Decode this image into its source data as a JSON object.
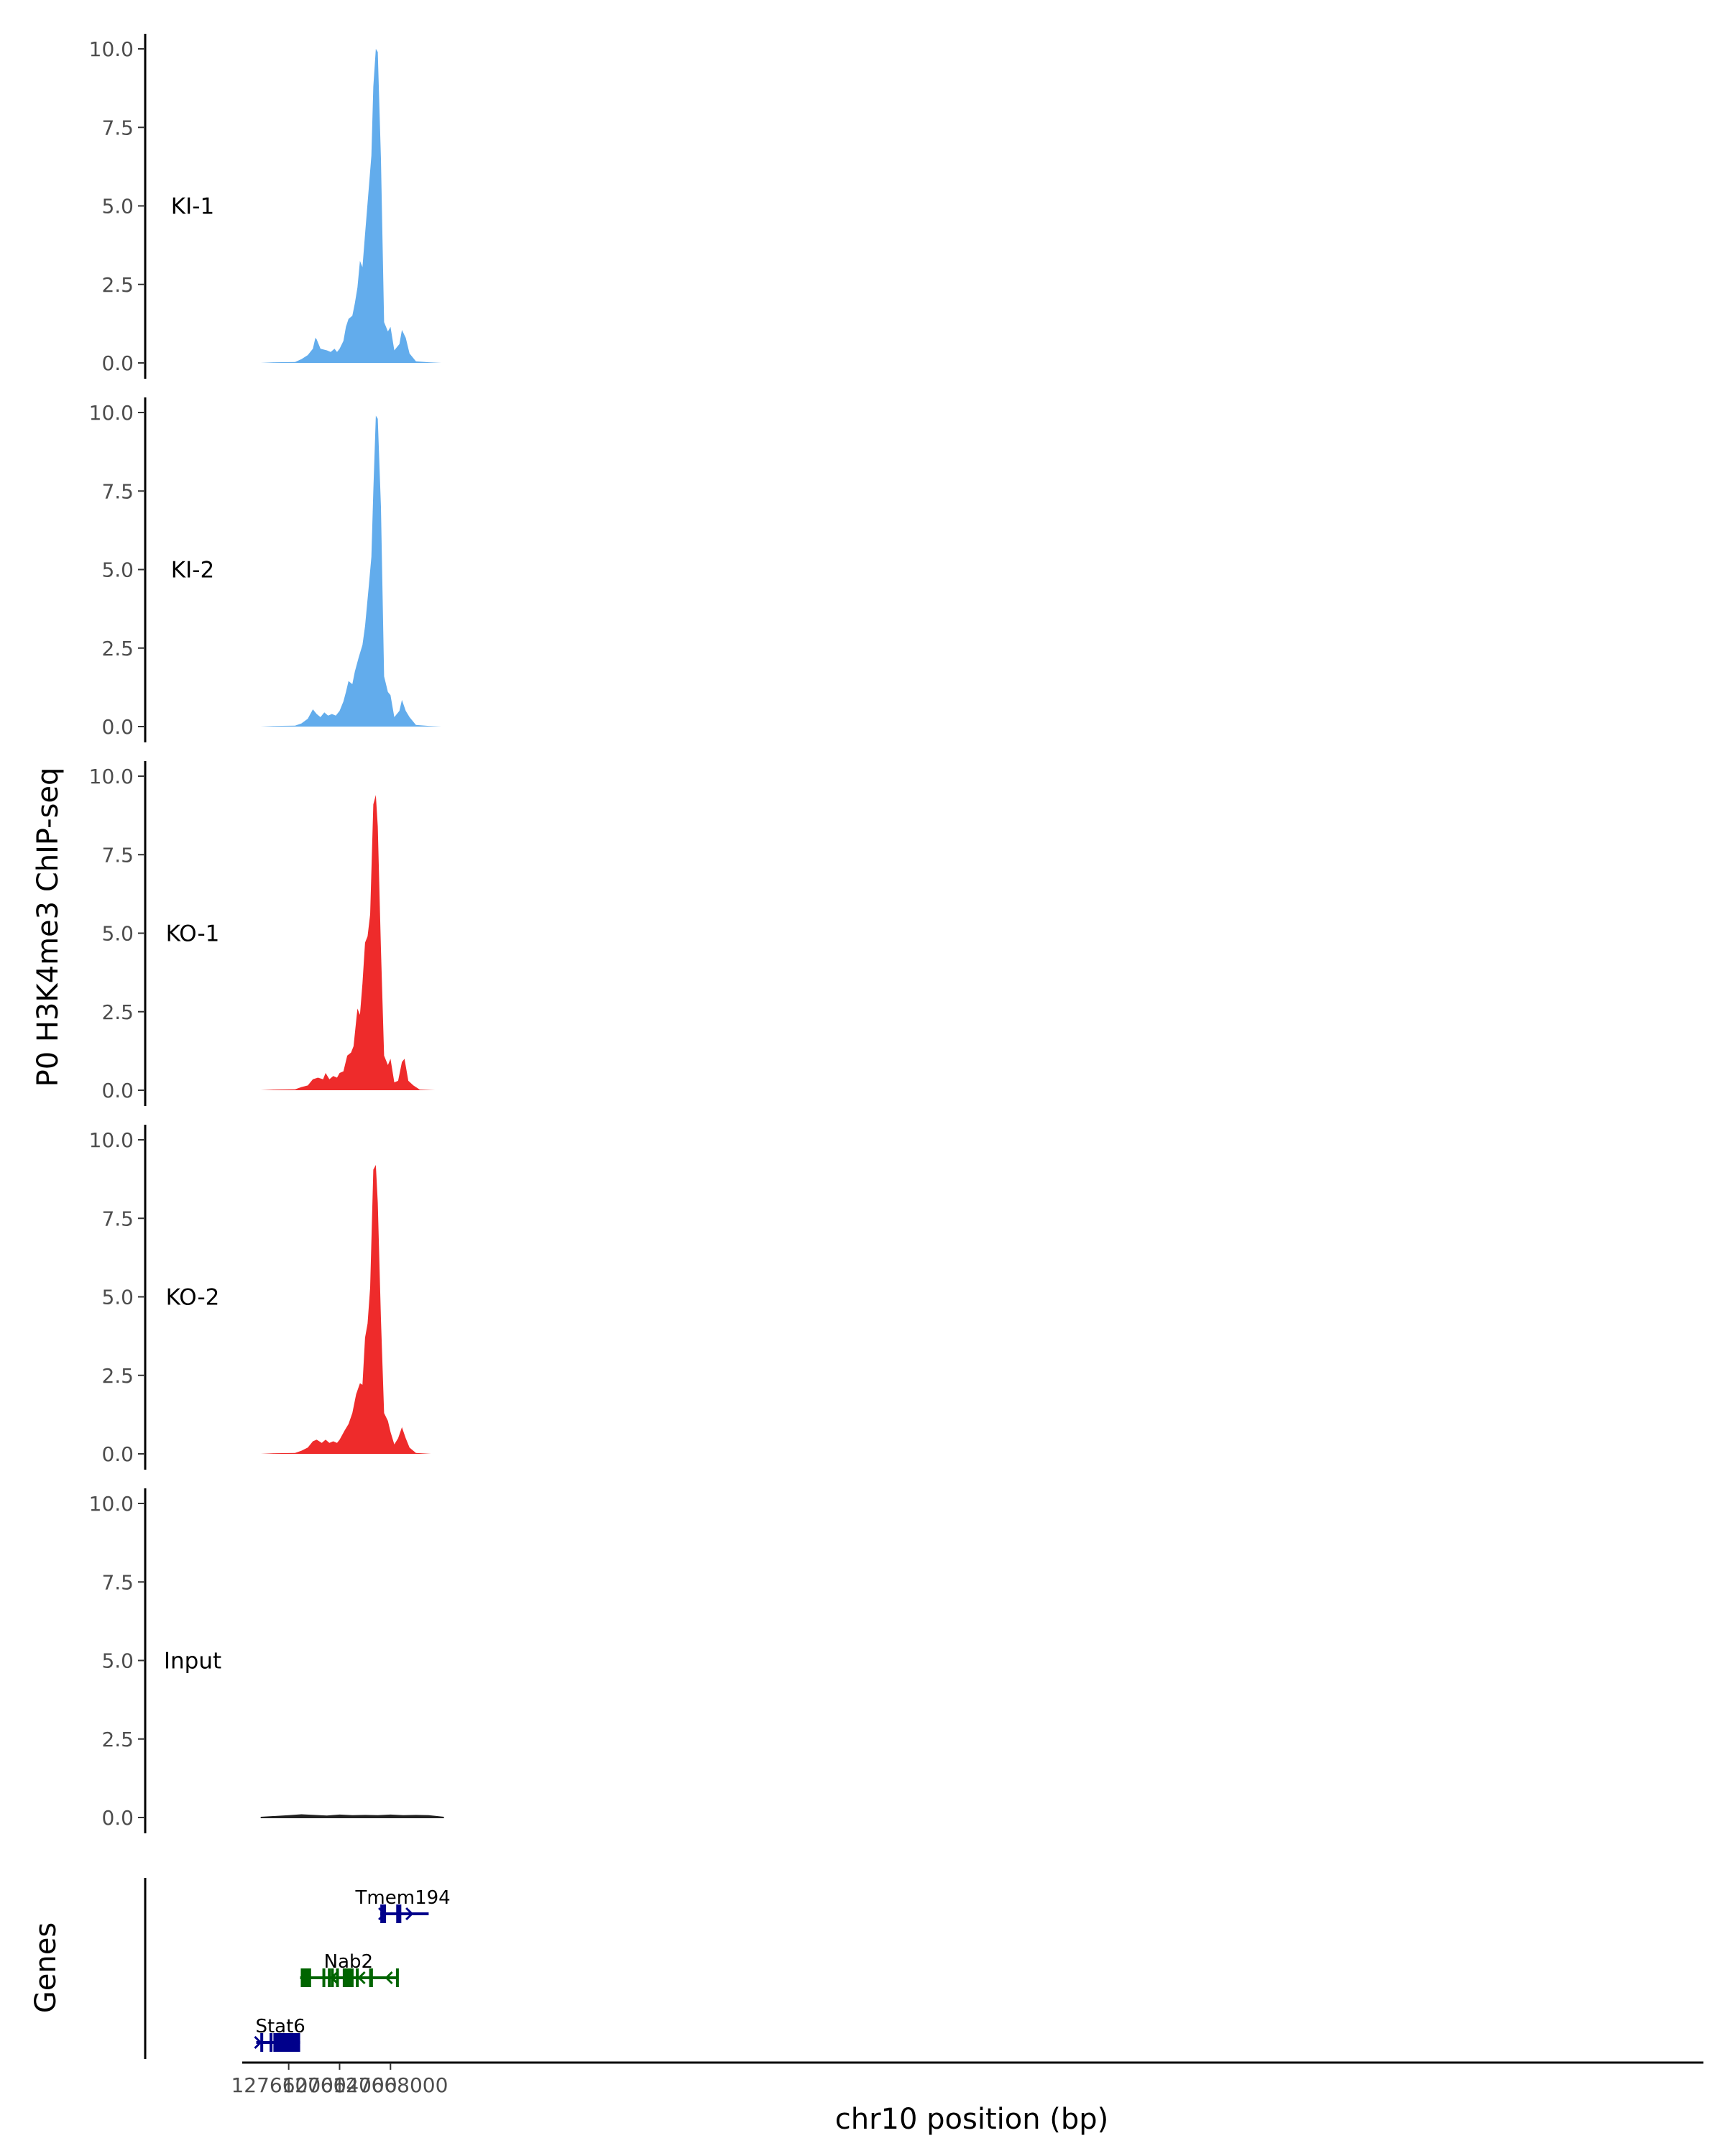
{
  "chart_data": {
    "type": "area",
    "y_axis_title": "P0 H3K4me3 ChIP-seq",
    "x_axis_title": "chr10 position (bp)",
    "genes_axis_title": "Genes",
    "x_range": [
      127656800,
      127770500
    ],
    "x_ticks": [
      127660000,
      127664000,
      127668000
    ],
    "x_tick_labels": [
      "127660000",
      "127664000",
      "127668000"
    ],
    "ylim": [
      0,
      10
    ],
    "y_ticks": [
      0,
      2.5,
      5,
      7.5,
      10
    ],
    "y_tick_labels": [
      "0.0",
      "2.5",
      "5.0",
      "7.5",
      "10.0"
    ],
    "colors": {
      "KI": "#62acec",
      "KO": "#ee2b2b",
      "Input": "#222222",
      "gene_plus": "#00008b",
      "gene_minus": "#006400"
    },
    "tracks": [
      {
        "name": "KI-1",
        "color": "#62acec",
        "points": [
          [
            127657800,
            0
          ],
          [
            127659000,
            0.02
          ],
          [
            127660500,
            0.03
          ],
          [
            127661000,
            0.12
          ],
          [
            127661500,
            0.25
          ],
          [
            127661900,
            0.45
          ],
          [
            127662100,
            0.8
          ],
          [
            127662200,
            0.75
          ],
          [
            127662500,
            0.45
          ],
          [
            127663000,
            0.4
          ],
          [
            127663300,
            0.35
          ],
          [
            127663600,
            0.45
          ],
          [
            127663800,
            0.35
          ],
          [
            127664000,
            0.45
          ],
          [
            127664300,
            0.7
          ],
          [
            127664500,
            1.15
          ],
          [
            127664700,
            1.4
          ],
          [
            127665000,
            1.5
          ],
          [
            127665200,
            1.9
          ],
          [
            127665400,
            2.4
          ],
          [
            127665600,
            3.25
          ],
          [
            127665800,
            3.05
          ],
          [
            127666000,
            4.1
          ],
          [
            127666300,
            5.6
          ],
          [
            127666500,
            6.6
          ],
          [
            127666650,
            8.8
          ],
          [
            127666850,
            10
          ],
          [
            127667000,
            9.9
          ],
          [
            127667250,
            6.5
          ],
          [
            127667500,
            1.3
          ],
          [
            127667800,
            1.0
          ],
          [
            127668000,
            1.15
          ],
          [
            127668300,
            0.4
          ],
          [
            127668700,
            0.6
          ],
          [
            127668900,
            1.05
          ],
          [
            127669200,
            0.8
          ],
          [
            127669500,
            0.3
          ],
          [
            127670000,
            0.05
          ],
          [
            127671000,
            0.02
          ],
          [
            127672000,
            0
          ]
        ]
      },
      {
        "name": "KI-2",
        "color": "#62acec",
        "points": [
          [
            127657800,
            0
          ],
          [
            127659000,
            0.02
          ],
          [
            127660500,
            0.03
          ],
          [
            127661000,
            0.1
          ],
          [
            127661500,
            0.25
          ],
          [
            127661900,
            0.55
          ],
          [
            127662200,
            0.4
          ],
          [
            127662500,
            0.3
          ],
          [
            127662800,
            0.45
          ],
          [
            127663100,
            0.35
          ],
          [
            127663400,
            0.4
          ],
          [
            127663700,
            0.35
          ],
          [
            127664000,
            0.5
          ],
          [
            127664300,
            0.8
          ],
          [
            127664500,
            1.1
          ],
          [
            127664700,
            1.45
          ],
          [
            127665000,
            1.35
          ],
          [
            127665200,
            1.75
          ],
          [
            127665500,
            2.2
          ],
          [
            127665800,
            2.6
          ],
          [
            127666000,
            3.2
          ],
          [
            127666300,
            4.5
          ],
          [
            127666500,
            5.4
          ],
          [
            127666650,
            7.5
          ],
          [
            127666850,
            9.9
          ],
          [
            127667000,
            9.8
          ],
          [
            127667250,
            7.0
          ],
          [
            127667500,
            1.6
          ],
          [
            127667800,
            1.1
          ],
          [
            127668000,
            1.0
          ],
          [
            127668300,
            0.3
          ],
          [
            127668700,
            0.5
          ],
          [
            127668900,
            0.85
          ],
          [
            127669200,
            0.5
          ],
          [
            127669500,
            0.3
          ],
          [
            127670000,
            0.05
          ],
          [
            127671000,
            0.02
          ],
          [
            127672000,
            0
          ]
        ]
      },
      {
        "name": "KO-1",
        "color": "#ee2b2b",
        "points": [
          [
            127657800,
            0
          ],
          [
            127659000,
            0.02
          ],
          [
            127660500,
            0.03
          ],
          [
            127661000,
            0.1
          ],
          [
            127661500,
            0.15
          ],
          [
            127661900,
            0.35
          ],
          [
            127662300,
            0.4
          ],
          [
            127662700,
            0.35
          ],
          [
            127662900,
            0.55
          ],
          [
            127663200,
            0.35
          ],
          [
            127663500,
            0.45
          ],
          [
            127663800,
            0.4
          ],
          [
            127664000,
            0.55
          ],
          [
            127664300,
            0.6
          ],
          [
            127664600,
            1.1
          ],
          [
            127664900,
            1.2
          ],
          [
            127665100,
            1.4
          ],
          [
            127665400,
            2.6
          ],
          [
            127665600,
            2.4
          ],
          [
            127665800,
            3.4
          ],
          [
            127666000,
            4.7
          ],
          [
            127666200,
            4.9
          ],
          [
            127666400,
            5.6
          ],
          [
            127666650,
            9.1
          ],
          [
            127666850,
            9.4
          ],
          [
            127667000,
            8.4
          ],
          [
            127667250,
            4.5
          ],
          [
            127667500,
            1.1
          ],
          [
            127667800,
            0.8
          ],
          [
            127668000,
            1.0
          ],
          [
            127668300,
            0.25
          ],
          [
            127668600,
            0.3
          ],
          [
            127668900,
            0.9
          ],
          [
            127669100,
            1.0
          ],
          [
            127669400,
            0.3
          ],
          [
            127669800,
            0.15
          ],
          [
            127670300,
            0.02
          ],
          [
            127671500,
            0
          ]
        ]
      },
      {
        "name": "KO-2",
        "color": "#ee2b2b",
        "points": [
          [
            127657800,
            0
          ],
          [
            127659000,
            0.02
          ],
          [
            127660500,
            0.03
          ],
          [
            127661000,
            0.1
          ],
          [
            127661500,
            0.2
          ],
          [
            127661900,
            0.4
          ],
          [
            127662200,
            0.45
          ],
          [
            127662600,
            0.35
          ],
          [
            127662900,
            0.45
          ],
          [
            127663200,
            0.35
          ],
          [
            127663500,
            0.4
          ],
          [
            127663800,
            0.35
          ],
          [
            127664000,
            0.45
          ],
          [
            127664400,
            0.75
          ],
          [
            127664700,
            0.95
          ],
          [
            127665000,
            1.3
          ],
          [
            127665300,
            1.9
          ],
          [
            127665600,
            2.25
          ],
          [
            127665800,
            2.2
          ],
          [
            127666000,
            3.7
          ],
          [
            127666200,
            4.15
          ],
          [
            127666400,
            5.3
          ],
          [
            127666650,
            9.05
          ],
          [
            127666850,
            9.2
          ],
          [
            127667000,
            8.0
          ],
          [
            127667250,
            4.3
          ],
          [
            127667500,
            1.3
          ],
          [
            127667800,
            1.05
          ],
          [
            127668000,
            0.7
          ],
          [
            127668300,
            0.3
          ],
          [
            127668600,
            0.5
          ],
          [
            127668900,
            0.85
          ],
          [
            127669200,
            0.5
          ],
          [
            127669500,
            0.2
          ],
          [
            127670000,
            0.03
          ],
          [
            127671200,
            0
          ]
        ]
      },
      {
        "name": "Input",
        "color": "#222222",
        "points": [
          [
            127657800,
            0
          ],
          [
            127660000,
            0.05
          ],
          [
            127661000,
            0.08
          ],
          [
            127662000,
            0.06
          ],
          [
            127663000,
            0.04
          ],
          [
            127664000,
            0.07
          ],
          [
            127665000,
            0.05
          ],
          [
            127666000,
            0.06
          ],
          [
            127667000,
            0.05
          ],
          [
            127668000,
            0.07
          ],
          [
            127669000,
            0.05
          ],
          [
            127670000,
            0.06
          ],
          [
            127671000,
            0.05
          ],
          [
            127672200,
            0
          ]
        ]
      }
    ],
    "genes": [
      {
        "name": "Tmem194",
        "strand": "+",
        "row": 1,
        "color": "#00008b",
        "start": 127667200,
        "end": 127671000,
        "label_at": 127668980,
        "exons": [
          [
            127667200,
            127667420
          ],
          [
            127667420,
            127667650
          ],
          [
            127668450,
            127668850
          ]
        ]
      },
      {
        "name": "Nab2",
        "strand": "-",
        "row": 2,
        "color": "#006400",
        "start": 127660900,
        "end": 127668550,
        "label_at": 127664700,
        "exons": [
          [
            127660950,
            127661760
          ],
          [
            127662650,
            127662830
          ],
          [
            127663080,
            127663190
          ],
          [
            127663320,
            127663360
          ],
          [
            127663720,
            127663830
          ],
          [
            127664250,
            127665100
          ],
          [
            127665280,
            127665430
          ],
          [
            127666320,
            127666620
          ],
          [
            127668430,
            127668550
          ]
        ]
      },
      {
        "name": "Stat6",
        "strand": "+",
        "row": 3,
        "color": "#00008b",
        "start": 127657450,
        "end": 127660900,
        "label_at": 127659350,
        "exons": [
          [
            127657770,
            127657830
          ],
          [
            127658500,
            127658600
          ],
          [
            127658800,
            127660900
          ]
        ]
      }
    ]
  }
}
